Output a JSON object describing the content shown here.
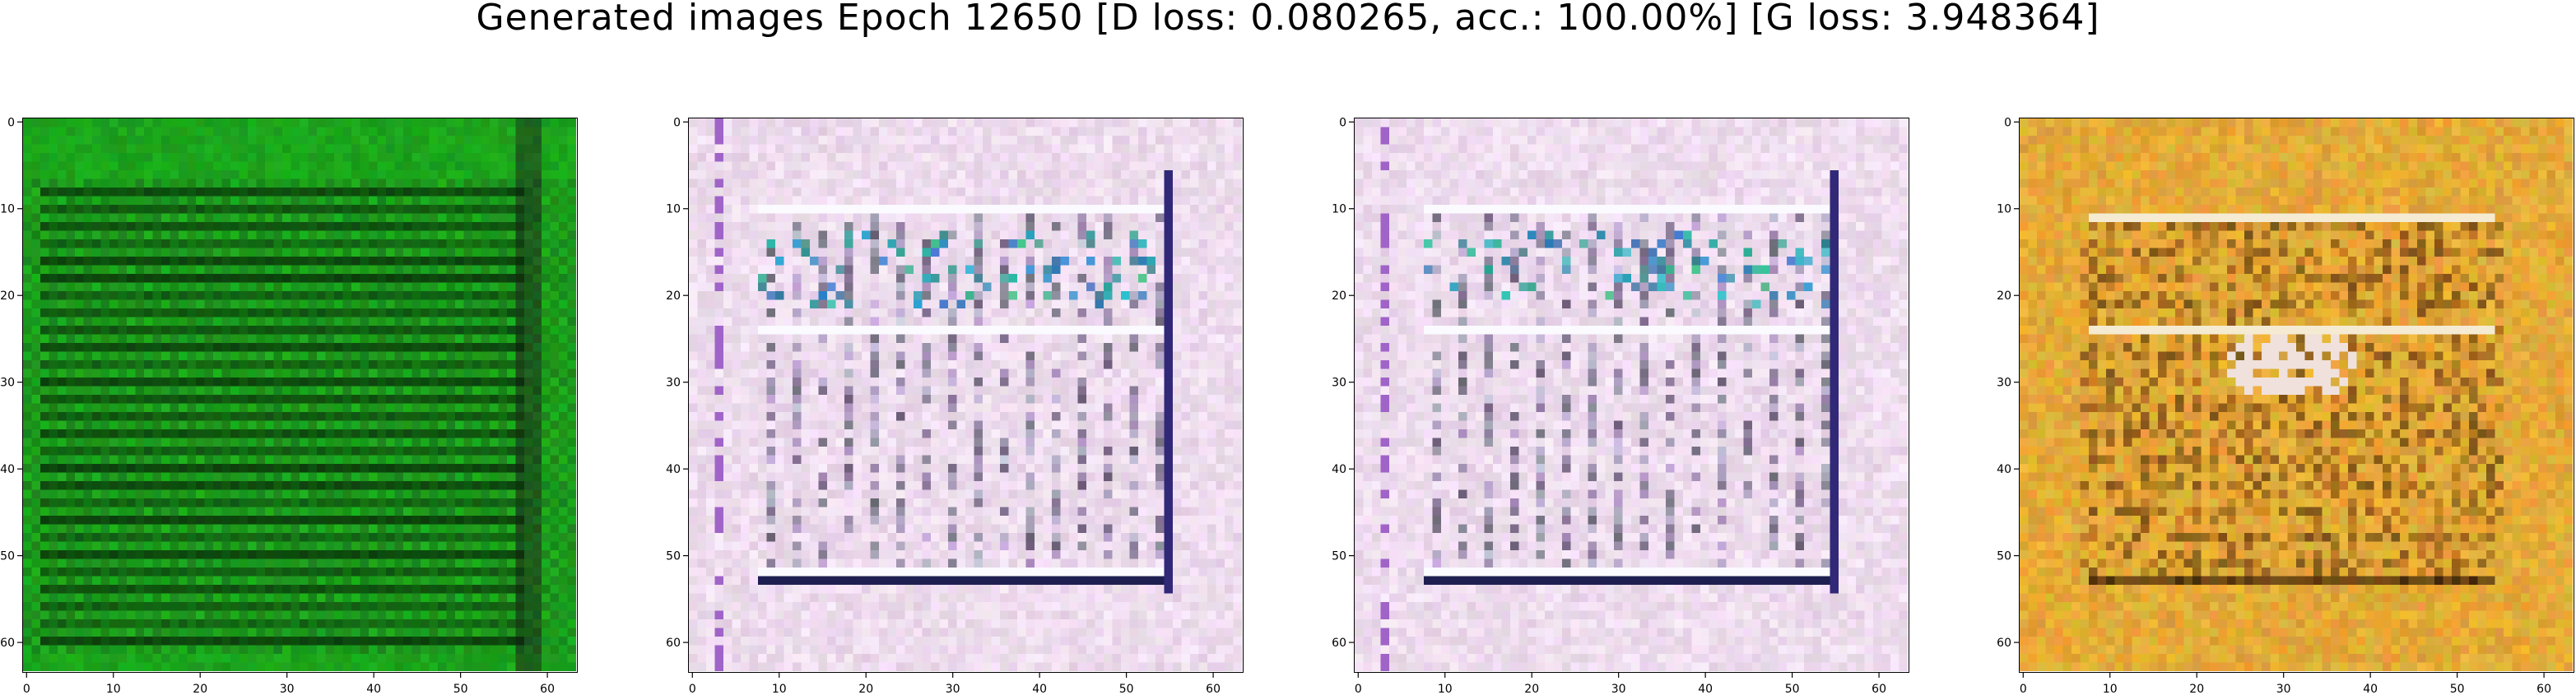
{
  "figure": {
    "title": "Generated images Epoch 12650 [D loss: 0.080265, acc.: 100.00%] [G loss: 3.948364]"
  },
  "panels": [
    {
      "name": "generated-image-1",
      "tone": "green",
      "base_color": "#1a9a1a"
    },
    {
      "name": "generated-image-2",
      "tone": "pink-white",
      "base_color": "#e8d8ea"
    },
    {
      "name": "generated-image-3",
      "tone": "pink-white",
      "base_color": "#e8d8ea"
    },
    {
      "name": "generated-image-4",
      "tone": "gold",
      "base_color": "#d89a2a"
    }
  ],
  "axes": {
    "x_ticks": [
      "0",
      "10",
      "20",
      "30",
      "40",
      "50",
      "60"
    ],
    "y_ticks": [
      "0",
      "10",
      "20",
      "30",
      "40",
      "50",
      "60"
    ]
  }
}
